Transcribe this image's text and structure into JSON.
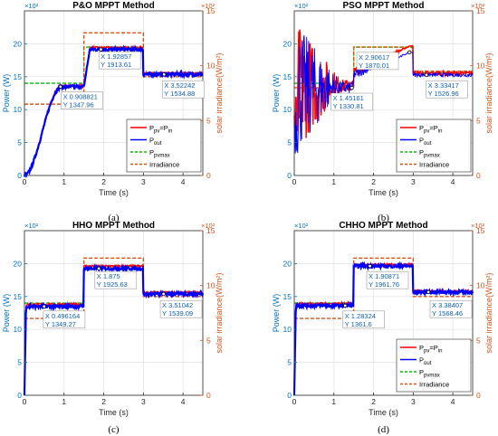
{
  "colors": {
    "left_axis": "#0072BD",
    "right_axis": "#D95319",
    "ppv": "#FF0000",
    "pout": "#0000FF",
    "ppvmax": "#00C000",
    "irradiance": "#D95319",
    "datatip_text": "#1060B0",
    "grid": "#E0E0E0"
  },
  "chart_data": [
    {
      "type": "line",
      "panel": "a",
      "title": "P&O MPPT Method",
      "subcaption": "(a)",
      "xlabel": "Time (s)",
      "ylabel": "Power (W)",
      "y2label": "solar irradiance(W/m²)",
      "yexp": "×10²",
      "y2exp": "×10²",
      "xlim": [
        0,
        4.5
      ],
      "ylim": [
        0,
        25
      ],
      "y2lim": [
        0,
        15
      ],
      "xticks": [
        0,
        1,
        2,
        3,
        4
      ],
      "yticks": [
        0,
        5,
        10,
        15,
        20
      ],
      "y2ticks": [
        0,
        5,
        10,
        15
      ],
      "grid": true,
      "legend_position": "bottom-right",
      "legend": [
        "Ppv=Pin",
        "Pout",
        "Ppvmax",
        "Irradiance"
      ],
      "series_style": "po",
      "levels": {
        "ppvmax": [
          14.0,
          19.5,
          15.6
        ],
        "irr": [
          6.5,
          13.0,
          9.0
        ],
        "pout": [
          13.48,
          19.14,
          15.35
        ],
        "ppv": [
          13.6,
          19.4,
          15.5
        ]
      },
      "datatips": [
        {
          "x": "0.908821",
          "y": "1347.96",
          "px": 0.908821,
          "py": 13.48,
          "lx": 0.95,
          "ly": 11.6
        },
        {
          "x": "1.92857",
          "y": "1913.61",
          "px": 1.92857,
          "py": 19.14,
          "lx": 1.9,
          "ly": 17.7
        },
        {
          "x": "3.52242",
          "y": "1534.88",
          "px": 3.52242,
          "py": 15.35,
          "lx": 3.5,
          "ly": 13.3
        }
      ]
    },
    {
      "type": "line",
      "panel": "b",
      "title": "PSO MPPT Method",
      "subcaption": "(b)",
      "xlabel": "Time (s)",
      "ylabel": "Power (W)",
      "y2label": "solar irradiance(W/m²)",
      "yexp": "×10²",
      "y2exp": "×10²",
      "xlim": [
        0,
        4.5
      ],
      "ylim": [
        0,
        25
      ],
      "y2lim": [
        0,
        15
      ],
      "xticks": [
        0,
        1,
        2,
        3,
        4
      ],
      "yticks": [
        0,
        5,
        10,
        15,
        20
      ],
      "y2ticks": [
        0,
        5,
        10,
        15
      ],
      "grid": true,
      "legend_position": "bottom-right",
      "legend": [
        "Ppv=Pin",
        "Pout",
        "Ppvmax",
        "Irradiance"
      ],
      "series_style": "pso",
      "levels": {
        "ppvmax": [
          14.0,
          19.5,
          15.6
        ],
        "irr": [
          8.0,
          11.7,
          9.5
        ],
        "pout": [
          13.3,
          18.7,
          15.27
        ],
        "ppv": [
          13.6,
          19.7,
          15.5
        ]
      },
      "datatips": [
        {
          "x": "2.90617",
          "y": "1870.01",
          "px": 2.90617,
          "py": 18.7,
          "lx": 1.6,
          "ly": 17.6
        },
        {
          "x": "1.45161",
          "y": "1330.81",
          "px": 1.45161,
          "py": 13.3,
          "lx": 0.95,
          "ly": 11.4
        },
        {
          "x": "3.33417",
          "y": "1526.96",
          "px": 3.33417,
          "py": 15.27,
          "lx": 3.35,
          "ly": 13.3
        }
      ]
    },
    {
      "type": "line",
      "panel": "c",
      "title": "HHO MPPT Method",
      "subcaption": "(c)",
      "xlabel": "Time (s)",
      "ylabel": "Power (W)",
      "y2label": "solar irradiance(W/m²)",
      "yexp": "×10²",
      "y2exp": "×10²",
      "xlim": [
        0,
        4.5
      ],
      "ylim": [
        0,
        25
      ],
      "y2lim": [
        0,
        15
      ],
      "xticks": [
        0,
        1,
        2,
        3,
        4
      ],
      "yticks": [
        0,
        5,
        10,
        15,
        20
      ],
      "y2ticks": [
        0,
        5,
        10,
        15
      ],
      "grid": true,
      "legend_position": "none",
      "legend": [],
      "series_style": "fast",
      "levels": {
        "ppvmax": [
          14.0,
          19.6,
          15.6
        ],
        "irr": [
          7.0,
          12.5,
          9.0
        ],
        "pout": [
          13.49,
          19.25,
          15.39
        ],
        "ppv": [
          13.8,
          19.6,
          15.6
        ]
      },
      "datatips": [
        {
          "x": "0.496164",
          "y": "1349.27",
          "px": 0.496164,
          "py": 13.49,
          "lx": 0.5,
          "ly": 11.7
        },
        {
          "x": "1.875",
          "y": "1925.63",
          "px": 1.875,
          "py": 19.25,
          "lx": 1.8,
          "ly": 17.7
        },
        {
          "x": "3.51042",
          "y": "1539.09",
          "px": 3.51042,
          "py": 15.39,
          "lx": 3.45,
          "ly": 13.3
        }
      ]
    },
    {
      "type": "line",
      "panel": "d",
      "title": "CHHO MPPT Method",
      "subcaption": "(d)",
      "xlabel": "Time (s)",
      "ylabel": "Power (W)",
      "y2label": "solar irradiance(W/m²)",
      "yexp": "×10²",
      "y2exp": "×10²",
      "xlim": [
        0,
        4.5
      ],
      "ylim": [
        0,
        25
      ],
      "y2lim": [
        0,
        15
      ],
      "xticks": [
        0,
        1,
        2,
        3,
        4
      ],
      "yticks": [
        0,
        5,
        10,
        15,
        20
      ],
      "y2ticks": [
        0,
        5,
        10,
        15
      ],
      "grid": true,
      "legend_position": "bottom-right",
      "legend": [
        "Ppv=Pin",
        "Pout",
        "Ppvmax",
        "Irradiance"
      ],
      "series_style": "fast",
      "levels": {
        "ppvmax": [
          14.0,
          19.7,
          15.6
        ],
        "irr": [
          7.0,
          12.5,
          9.0
        ],
        "pout": [
          13.62,
          19.62,
          15.68
        ],
        "ppv": [
          13.9,
          19.8,
          15.8
        ]
      },
      "datatips": [
        {
          "x": "1.28324",
          "y": "1361.6",
          "px": 1.28324,
          "py": 13.62,
          "lx": 1.25,
          "ly": 11.7
        },
        {
          "x": "1.90871",
          "y": "1961.76",
          "px": 1.90871,
          "py": 19.62,
          "lx": 1.85,
          "ly": 17.7
        },
        {
          "x": "3.38407",
          "y": "1568.46",
          "px": 3.38407,
          "py": 15.68,
          "lx": 3.45,
          "ly": 13.3
        }
      ]
    }
  ]
}
